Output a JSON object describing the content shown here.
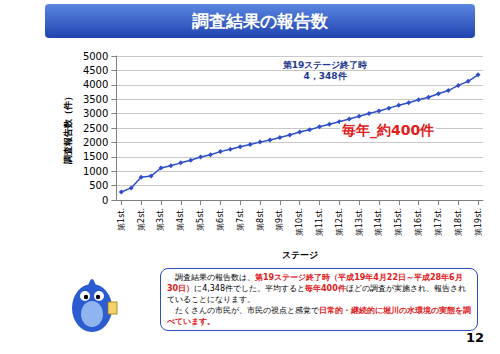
{
  "chart_data": {
    "type": "line",
    "title": "調査結果の報告数",
    "x_label": "ステージ",
    "y_label": "調査報告数（件）",
    "categories": [
      "第1st.",
      null,
      "第2st.",
      null,
      "第3st.",
      null,
      "第4st.",
      null,
      "第5st.",
      null,
      "第6st.",
      null,
      "第7st.",
      null,
      "第8st.",
      null,
      "第9st.",
      null,
      "第10st.",
      null,
      "第11st.",
      null,
      "第12st.",
      null,
      "第13st.",
      null,
      "第14st.",
      null,
      "第15st.",
      null,
      "第16st.",
      null,
      "第17st.",
      null,
      "第18st.",
      null,
      "第19st."
    ],
    "values": [
      280,
      420,
      790,
      830,
      1110,
      1190,
      1290,
      1380,
      1490,
      1570,
      1680,
      1760,
      1850,
      1930,
      2010,
      2080,
      2170,
      2260,
      2360,
      2440,
      2540,
      2630,
      2720,
      2810,
      2910,
      3000,
      3090,
      3190,
      3290,
      3380,
      3480,
      3570,
      3690,
      3800,
      3980,
      4120,
      4348
    ],
    "color": "#2f4fc8",
    "marker": "diamond",
    "ylim": [
      0,
      5000
    ],
    "yticks": [
      0,
      500,
      1000,
      1500,
      2000,
      2500,
      3000,
      3500,
      4000,
      4500,
      5000
    ],
    "grid": true,
    "annotations": [
      "第19ステージ終了時",
      "4，348件",
      "毎年_約400件"
    ]
  },
  "note": {
    "paragraphs": [
      [
        {
          "text": "　調査結果の報告数は、"
        },
        {
          "text": "第19ステージ終了時（平成19年4月22日～平成28年6月30日）",
          "highlight": true
        },
        {
          "text": "に4,348件でした。平均すると"
        },
        {
          "text": "毎年400件",
          "highlight": true
        },
        {
          "text": "ほどの調査が実施され、報告されていることになります。"
        }
      ],
      [
        {
          "text": "　たくさんの市民が、市民の視点と感覚で"
        },
        {
          "text": "日常的・継続的に堀川の水環境の実態を調べています。",
          "highlight": true
        }
      ]
    ]
  },
  "page_number": "12"
}
